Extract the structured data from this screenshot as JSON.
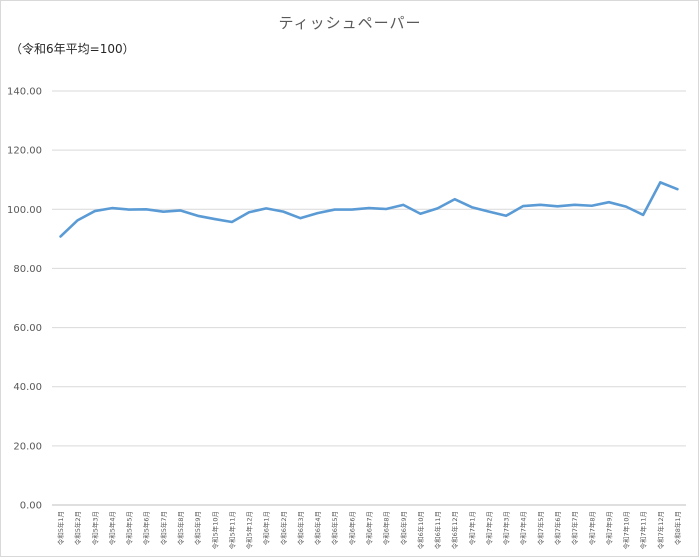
{
  "chart_data": {
    "type": "line",
    "title": "ティッシュペーパー",
    "unit_label": "（令和6年平均=100）",
    "ylim": [
      0,
      140
    ],
    "yticks": [
      "0.00",
      "20.00",
      "40.00",
      "60.00",
      "80.00",
      "100.00",
      "120.00",
      "140.00"
    ],
    "ytick_values": [
      0,
      20,
      40,
      60,
      80,
      100,
      120,
      140
    ],
    "grid": true,
    "legend": "none",
    "categories": [
      "令和5年1月",
      "令和5年2月",
      "令和5年3月",
      "令和5年4月",
      "令和5年5月",
      "令和5年6月",
      "令和5年7月",
      "令和5年8月",
      "令和5年9月",
      "令和5年10月",
      "令和5年11月",
      "令和5年12月",
      "令和6年1月",
      "令和6年2月",
      "令和6年3月",
      "令和6年4月",
      "令和6年5月",
      "令和6年6月",
      "令和6年7月",
      "令和6年8月",
      "令和6年9月",
      "令和6年10月",
      "令和6年11月",
      "令和6年12月",
      "令和7年1月",
      "令和7年2月",
      "令和7年3月",
      "令和7年4月",
      "令和7年5月",
      "令和7年6月",
      "令和7年7月",
      "令和7年8月",
      "令和7年9月",
      "令和7年10月",
      "令和7年11月",
      "令和7年12月",
      "令和8年1月"
    ],
    "series": [
      {
        "color": "#5b9bd5",
        "values": [
          90.8,
          96.3,
          99.4,
          100.4,
          99.9,
          100.0,
          99.2,
          99.6,
          97.8,
          96.7,
          95.7,
          99.0,
          100.3,
          99.2,
          97.0,
          98.7,
          99.9,
          99.9,
          100.4,
          100.1,
          101.5,
          98.5,
          100.3,
          103.4,
          100.7,
          99.2,
          97.8,
          101.1,
          101.5,
          101.0,
          101.5,
          101.2,
          102.4,
          100.9,
          98.1,
          109.1,
          106.8
        ]
      }
    ]
  }
}
